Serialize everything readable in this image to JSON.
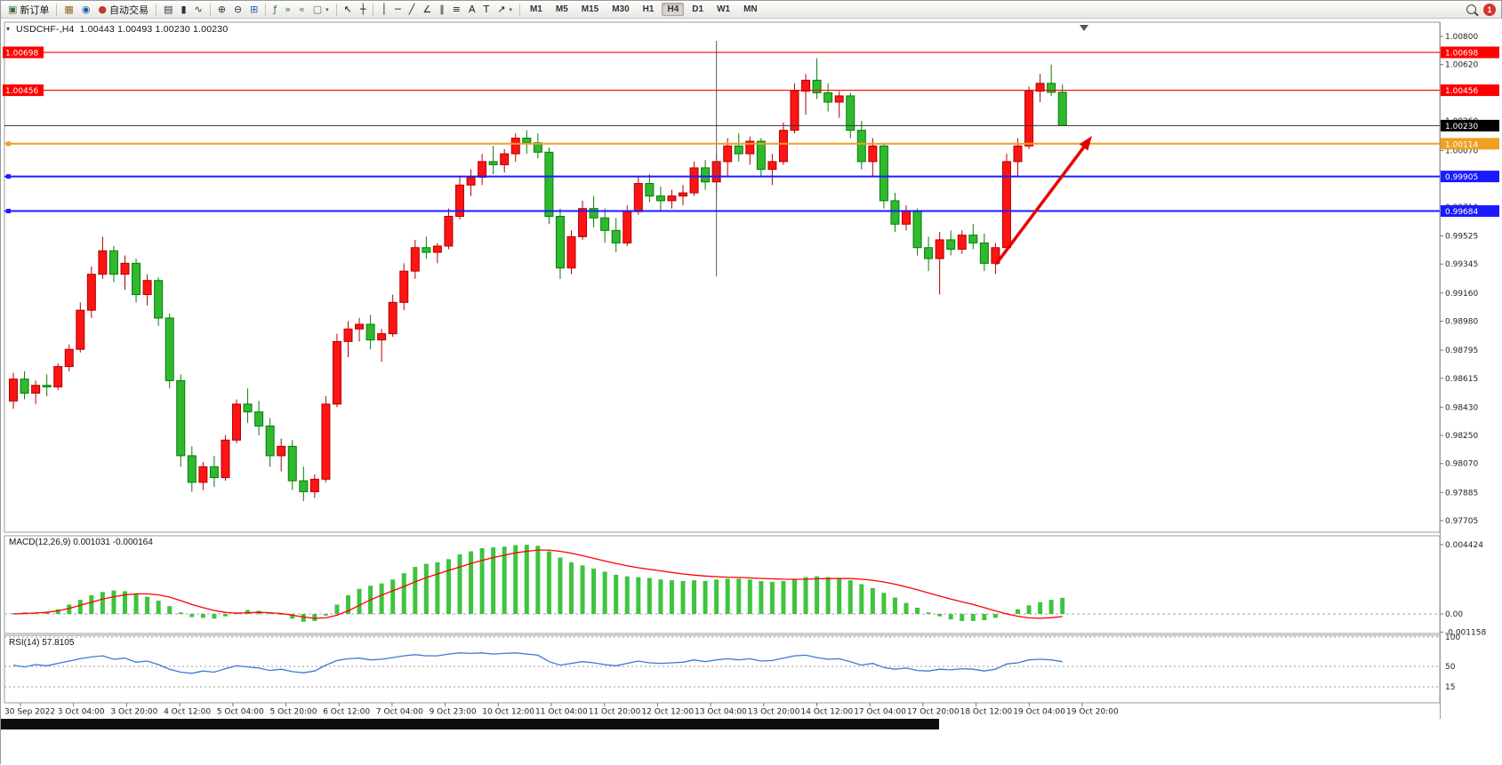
{
  "toolbar": {
    "notification_count": "1",
    "items": [
      {
        "type": "button",
        "name": "new-order-button",
        "glyph": "▣",
        "color": "#3f6f3f",
        "label": "新订单"
      },
      {
        "type": "sep"
      },
      {
        "type": "icon",
        "name": "charts-window-icon",
        "glyph": "▦",
        "color": "#8a6d1f"
      },
      {
        "type": "icon",
        "name": "navigator-icon",
        "glyph": "◉",
        "color": "#1a5fb4"
      },
      {
        "type": "button",
        "name": "autotrading-button",
        "glyph": "●",
        "color": "#c23b22",
        "label": "自动交易"
      },
      {
        "type": "sep"
      },
      {
        "type": "icon",
        "name": "bar-chart-type-icon",
        "glyph": "▤",
        "color": "#333333"
      },
      {
        "type": "icon",
        "name": "candlestick-chart-type-icon",
        "glyph": "▮",
        "color": "#333333"
      },
      {
        "type": "icon",
        "name": "line-chart-type-icon",
        "glyph": "∿",
        "color": "#333333"
      },
      {
        "type": "sep"
      },
      {
        "type": "icon",
        "name": "zoom-in-icon",
        "glyph": "⊕",
        "color": "#333333"
      },
      {
        "type": "icon",
        "name": "zoom-out-icon",
        "glyph": "⊖",
        "color": "#333333"
      },
      {
        "type": "icon",
        "name": "tile-windows-icon",
        "glyph": "⊞",
        "color": "#1a5fb4"
      },
      {
        "type": "sep"
      },
      {
        "type": "icon",
        "name": "indicators-icon",
        "glyph": "ƒ",
        "color": "#2a7d2a"
      },
      {
        "type": "icon",
        "name": "auto-scroll-icon",
        "glyph": "»",
        "color": "#2a7d2a"
      },
      {
        "type": "icon",
        "name": "chart-shift-icon",
        "glyph": "«",
        "color": "#666666"
      },
      {
        "type": "icon",
        "name": "templates-icon",
        "glyph": "▢",
        "color": "#666666",
        "caret": true
      },
      {
        "type": "sep"
      },
      {
        "type": "icon",
        "name": "cursor-icon",
        "glyph": "↖",
        "color": "#222222"
      },
      {
        "type": "icon",
        "name": "crosshair-icon",
        "glyph": "┼",
        "color": "#222222"
      },
      {
        "type": "sep"
      },
      {
        "type": "icon",
        "name": "vertical-line-icon",
        "glyph": "│",
        "color": "#222222"
      },
      {
        "type": "icon",
        "name": "horizontal-line-icon",
        "glyph": "─",
        "color": "#222222"
      },
      {
        "type": "icon",
        "name": "trendline-icon",
        "glyph": "╱",
        "color": "#222222"
      },
      {
        "type": "icon",
        "name": "angle-trendline-icon",
        "glyph": "∠",
        "color": "#222222"
      },
      {
        "type": "icon",
        "name": "equidistant-channel-icon",
        "glyph": "∥",
        "color": "#222222"
      },
      {
        "type": "icon",
        "name": "fibonacci-icon",
        "glyph": "≡",
        "color": "#222222"
      },
      {
        "type": "icon",
        "name": "text-icon",
        "glyph": "A",
        "color": "#222222"
      },
      {
        "type": "icon",
        "name": "text-label-icon",
        "glyph": "T",
        "color": "#222222"
      },
      {
        "type": "icon",
        "name": "arrows-icon",
        "glyph": "↗",
        "color": "#222222",
        "caret": true
      },
      {
        "type": "sep"
      },
      {
        "type": "tf",
        "label": "M1"
      },
      {
        "type": "tf",
        "label": "M5"
      },
      {
        "type": "tf",
        "label": "M15"
      },
      {
        "type": "tf",
        "label": "M30"
      },
      {
        "type": "tf",
        "label": "H1"
      },
      {
        "type": "tf",
        "label": "H4",
        "active": true
      },
      {
        "type": "tf",
        "label": "D1"
      },
      {
        "type": "tf",
        "label": "W1"
      },
      {
        "type": "tf",
        "label": "MN"
      }
    ]
  },
  "chart": {
    "symbol_title": "USDCHF-,H4",
    "ohlc_text": "1.00443 1.00493 1.00230 1.00230",
    "macd_label": "MACD(12,26,9) 0.001031 -0.000164",
    "rsi_label": "RSI(14) 57.8105"
  },
  "chart_data": {
    "type": "candlestick",
    "symbol": "USDCHF-",
    "timeframe": "H4",
    "ohlc_display": {
      "open": 1.00443,
      "high": 1.00493,
      "low": 1.0023,
      "close": 1.0023
    },
    "style": {
      "bull_color": "#fe1414",
      "bear_color": "#2fb92f",
      "bull_border": "#b40000",
      "bear_border": "#067d06"
    },
    "price_axis": {
      "top": 1.008,
      "bottom": 0.97705,
      "ticks": [
        1.008,
        1.0062,
        1.0044,
        1.0026,
        1.0007,
        0.9989,
        0.9971,
        0.99525,
        0.99345,
        0.9916,
        0.9898,
        0.98795,
        0.98615,
        0.9843,
        0.9825,
        0.9807,
        0.97885,
        0.97705
      ]
    },
    "horizontal_lines": [
      {
        "name": "resistance-line-upper",
        "price": 1.00698,
        "color": "#ff0000",
        "width": 1.2,
        "left_badge": true
      },
      {
        "name": "resistance-line-lower",
        "price": 1.00456,
        "color": "#ff0000",
        "width": 1.2,
        "left_badge": true
      },
      {
        "name": "current-price-line",
        "price": 1.0023,
        "color": "#333333",
        "width": 1,
        "badge_bg": "#000000"
      },
      {
        "name": "gold-support-line",
        "price": 1.00114,
        "color": "#efa023",
        "width": 2,
        "marker": true
      },
      {
        "name": "blue-support-line-upper",
        "price": 0.99905,
        "color": "#1b1bff",
        "width": 2,
        "marker": true
      },
      {
        "name": "blue-support-line-lower",
        "price": 0.99684,
        "color": "#1b1bff",
        "width": 2,
        "marker": true
      }
    ],
    "vertical_line": {
      "candle_index": 63
    },
    "trend_arrow": {
      "color": "#e60000"
    },
    "time_labels": [
      "30 Sep 2022",
      "3 Oct 04:00",
      "3 Oct 20:00",
      "4 Oct 12:00",
      "5 Oct 04:00",
      "5 Oct 20:00",
      "6 Oct 12:00",
      "7 Oct 04:00",
      "9 Oct 23:00",
      "10 Oct 12:00",
      "11 Oct 04:00",
      "11 Oct 20:00",
      "12 Oct 12:00",
      "13 Oct 04:00",
      "13 Oct 20:00",
      "14 Oct 12:00",
      "17 Oct 04:00",
      "17 Oct 20:00",
      "18 Oct 12:00",
      "19 Oct 04:00",
      "19 Oct 20:00"
    ],
    "candles": [
      [
        0.9847,
        0.9865,
        0.9842,
        0.9861
      ],
      [
        0.9861,
        0.9866,
        0.9848,
        0.9852
      ],
      [
        0.9852,
        0.986,
        0.9845,
        0.9857
      ],
      [
        0.9857,
        0.9864,
        0.985,
        0.9856
      ],
      [
        0.9856,
        0.9871,
        0.9854,
        0.9869
      ],
      [
        0.9869,
        0.9883,
        0.9866,
        0.988
      ],
      [
        0.988,
        0.991,
        0.9878,
        0.9905
      ],
      [
        0.9905,
        0.9933,
        0.99,
        0.9928
      ],
      [
        0.9928,
        0.9952,
        0.9925,
        0.9943
      ],
      [
        0.9943,
        0.9946,
        0.9923,
        0.9928
      ],
      [
        0.9928,
        0.994,
        0.9918,
        0.9935
      ],
      [
        0.9935,
        0.9938,
        0.991,
        0.9915
      ],
      [
        0.9915,
        0.9928,
        0.9908,
        0.9924
      ],
      [
        0.9924,
        0.9926,
        0.9895,
        0.99
      ],
      [
        0.99,
        0.9903,
        0.9855,
        0.986
      ],
      [
        0.986,
        0.9864,
        0.9805,
        0.9812
      ],
      [
        0.9812,
        0.9818,
        0.9789,
        0.9795
      ],
      [
        0.9795,
        0.9808,
        0.979,
        0.9805
      ],
      [
        0.9805,
        0.9812,
        0.9792,
        0.9798
      ],
      [
        0.9798,
        0.9825,
        0.9796,
        0.9822
      ],
      [
        0.9822,
        0.9848,
        0.982,
        0.9845
      ],
      [
        0.9845,
        0.9855,
        0.9833,
        0.984
      ],
      [
        0.984,
        0.9847,
        0.9825,
        0.9831
      ],
      [
        0.9831,
        0.9836,
        0.9805,
        0.9812
      ],
      [
        0.9812,
        0.9823,
        0.9802,
        0.9818
      ],
      [
        0.9818,
        0.9822,
        0.979,
        0.9796
      ],
      [
        0.9796,
        0.9805,
        0.9783,
        0.9789
      ],
      [
        0.9789,
        0.98,
        0.9785,
        0.9797
      ],
      [
        0.9797,
        0.985,
        0.9795,
        0.9845
      ],
      [
        0.9845,
        0.989,
        0.9843,
        0.9885
      ],
      [
        0.9885,
        0.9898,
        0.9875,
        0.9893
      ],
      [
        0.9893,
        0.99,
        0.9885,
        0.9896
      ],
      [
        0.9896,
        0.9902,
        0.988,
        0.9886
      ],
      [
        0.9886,
        0.9893,
        0.9872,
        0.989
      ],
      [
        0.989,
        0.9915,
        0.9888,
        0.991
      ],
      [
        0.991,
        0.9935,
        0.9905,
        0.993
      ],
      [
        0.993,
        0.995,
        0.9925,
        0.9945
      ],
      [
        0.9945,
        0.9952,
        0.9938,
        0.9942
      ],
      [
        0.9942,
        0.9948,
        0.9935,
        0.9946
      ],
      [
        0.9946,
        0.997,
        0.9944,
        0.9965
      ],
      [
        0.9965,
        0.999,
        0.9963,
        0.9985
      ],
      [
        0.9985,
        0.9995,
        0.9978,
        0.999
      ],
      [
        0.999,
        1.0005,
        0.9985,
        1.0
      ],
      [
        1.0,
        1.001,
        0.9992,
        0.9998
      ],
      [
        0.9998,
        1.0008,
        0.9993,
        1.0005
      ],
      [
        1.0005,
        1.0018,
        1.0,
        1.0015
      ],
      [
        1.0015,
        1.002,
        1.0005,
        1.0012
      ],
      [
        1.0012,
        1.0018,
        1.0002,
        1.0006
      ],
      [
        1.0006,
        1.0009,
        0.996,
        0.9965
      ],
      [
        0.9965,
        0.997,
        0.9925,
        0.9932
      ],
      [
        0.9932,
        0.9956,
        0.9928,
        0.9952
      ],
      [
        0.9952,
        0.9975,
        0.995,
        0.997
      ],
      [
        0.997,
        0.9978,
        0.9958,
        0.9964
      ],
      [
        0.9964,
        0.997,
        0.9948,
        0.9956
      ],
      [
        0.9956,
        0.9964,
        0.9942,
        0.9948
      ],
      [
        0.9948,
        0.9972,
        0.9946,
        0.9968
      ],
      [
        0.9968,
        0.999,
        0.9966,
        0.9986
      ],
      [
        0.9986,
        0.9992,
        0.9974,
        0.9978
      ],
      [
        0.9978,
        0.9984,
        0.9968,
        0.9975
      ],
      [
        0.9975,
        0.9982,
        0.997,
        0.9978
      ],
      [
        0.9978,
        0.9985,
        0.9972,
        0.998
      ],
      [
        0.998,
        1.0,
        0.9978,
        0.9996
      ],
      [
        0.9996,
        1.0001,
        0.9982,
        0.9987
      ],
      [
        0.9987,
        1.0005,
        0.998,
        1.0
      ],
      [
        1.0,
        1.0015,
        0.999,
        1.001
      ],
      [
        1.001,
        1.0018,
        1.0,
        1.0005
      ],
      [
        1.0005,
        1.0016,
        0.9998,
        1.0013
      ],
      [
        1.0013,
        1.0015,
        0.999,
        0.9995
      ],
      [
        0.9995,
        1.0005,
        0.9985,
        1.0
      ],
      [
        1.0,
        1.0025,
        0.9998,
        1.002
      ],
      [
        1.002,
        1.005,
        1.0018,
        1.0045
      ],
      [
        1.0045,
        1.0056,
        1.003,
        1.0052
      ],
      [
        1.0052,
        1.0066,
        1.004,
        1.0044
      ],
      [
        1.0044,
        1.005,
        1.0032,
        1.0038
      ],
      [
        1.0038,
        1.0045,
        1.0028,
        1.0042
      ],
      [
        1.0042,
        1.0044,
        1.0015,
        1.002
      ],
      [
        1.002,
        1.0026,
        0.9995,
        1.0
      ],
      [
        1.0,
        1.0015,
        0.999,
        1.001
      ],
      [
        1.001,
        1.0012,
        0.997,
        0.9975
      ],
      [
        0.9975,
        0.998,
        0.9955,
        0.996
      ],
      [
        0.996,
        0.9972,
        0.9956,
        0.9968
      ],
      [
        0.9968,
        0.997,
        0.994,
        0.9945
      ],
      [
        0.9945,
        0.9952,
        0.993,
        0.9938
      ],
      [
        0.9938,
        0.9955,
        0.9915,
        0.995
      ],
      [
        0.995,
        0.9956,
        0.994,
        0.9944
      ],
      [
        0.9944,
        0.9956,
        0.9941,
        0.9953
      ],
      [
        0.9953,
        0.996,
        0.9944,
        0.9948
      ],
      [
        0.9948,
        0.9954,
        0.993,
        0.9935
      ],
      [
        0.9935,
        0.9948,
        0.9928,
        0.9945
      ],
      [
        0.9945,
        1.0005,
        0.9943,
        1.0
      ],
      [
        1.0,
        1.0015,
        0.999,
        1.001
      ],
      [
        1.001,
        1.0048,
        1.0008,
        1.0045
      ],
      [
        1.0045,
        1.0056,
        1.0038,
        1.005
      ],
      [
        1.005,
        1.0062,
        1.0042,
        1.00443
      ],
      [
        1.00443,
        1.00493,
        1.0023,
        1.0023
      ]
    ],
    "macd": {
      "title": "MACD(12,26,9)",
      "main_value": 0.001031,
      "signal_value": -0.000164,
      "hist_color": "#3ec43e",
      "signal_color": "#ff0000",
      "axis_labels": [
        {
          "text": "0.004424",
          "value": 0.004424
        },
        {
          "text": "0.00",
          "value": 0
        },
        {
          "text": "-0.001158",
          "value": -0.001158
        }
      ],
      "histogram": [
        5e-05,
        0.0001,
        8e-05,
        0.00015,
        0.0003,
        0.0006,
        0.0009,
        0.0012,
        0.0014,
        0.0015,
        0.00145,
        0.0013,
        0.0011,
        0.00085,
        0.0005,
        0.0001,
        -0.0002,
        -0.00025,
        -0.0003,
        -0.00015,
        0.0001,
        0.00025,
        0.0002,
        5e-05,
        -5e-05,
        -0.0003,
        -0.0005,
        -0.00045,
        -0.0001,
        0.0006,
        0.0012,
        0.0016,
        0.0018,
        0.00195,
        0.0022,
        0.0026,
        0.003,
        0.0032,
        0.0033,
        0.0035,
        0.0038,
        0.004,
        0.0042,
        0.00425,
        0.0043,
        0.0044,
        0.00442,
        0.00435,
        0.004,
        0.0036,
        0.0033,
        0.0031,
        0.0029,
        0.0027,
        0.0025,
        0.0024,
        0.00235,
        0.0023,
        0.0022,
        0.00215,
        0.0021,
        0.00215,
        0.0021,
        0.0022,
        0.00225,
        0.00225,
        0.0022,
        0.0021,
        0.00205,
        0.0021,
        0.0022,
        0.00235,
        0.0024,
        0.00235,
        0.0023,
        0.00215,
        0.0019,
        0.00165,
        0.00135,
        0.00105,
        0.0007,
        0.0004,
        0.0001,
        -0.00015,
        -0.00035,
        -0.00045,
        -0.00045,
        -0.0004,
        -0.00025,
        5e-05,
        0.0003,
        0.00055,
        0.00075,
        0.0009,
        0.00103
      ],
      "signal": [
        0.0,
        3e-05,
        6e-05,
        0.0001,
        0.0002,
        0.00035,
        0.00055,
        0.00075,
        0.00095,
        0.0011,
        0.00122,
        0.00128,
        0.00128,
        0.00122,
        0.00108,
        0.00085,
        0.0006,
        0.0004,
        0.00022,
        0.0001,
        5e-05,
        8e-05,
        0.0001,
        8e-05,
        3e-05,
        -8e-05,
        -0.0002,
        -0.00028,
        -0.00025,
        -8e-05,
        0.0002,
        0.00055,
        0.0009,
        0.0012,
        0.00148,
        0.00175,
        0.00205,
        0.00232,
        0.00255,
        0.00278,
        0.003,
        0.00322,
        0.00342,
        0.0036,
        0.00375,
        0.0039,
        0.004,
        0.00408,
        0.00408,
        0.004,
        0.00388,
        0.00372,
        0.00355,
        0.00338,
        0.00322,
        0.00308,
        0.00295,
        0.00285,
        0.00275,
        0.00265,
        0.00255,
        0.00248,
        0.00242,
        0.00238,
        0.00235,
        0.00233,
        0.0023,
        0.00227,
        0.00224,
        0.00222,
        0.00221,
        0.00222,
        0.00224,
        0.00226,
        0.00227,
        0.00226,
        0.00222,
        0.00215,
        0.00204,
        0.0019,
        0.00173,
        0.00154,
        0.00134,
        0.00114,
        0.00095,
        0.00077,
        0.0006,
        0.0004,
        0.0002,
        0.0,
        -0.00015,
        -0.00025,
        -0.00028,
        -0.00024,
        -0.000164
      ]
    },
    "rsi": {
      "title": "RSI(14)",
      "value": 57.8105,
      "color": "#3a7bd5",
      "levels": [
        {
          "text": "100",
          "value": 100
        },
        {
          "text": "50",
          "value": 50
        },
        {
          "text": "15",
          "value": 15
        }
      ],
      "series": [
        52,
        49,
        53,
        51,
        55,
        59,
        63,
        66,
        68,
        62,
        64,
        57,
        59,
        53,
        45,
        40,
        38,
        42,
        40,
        46,
        51,
        49,
        47,
        43,
        45,
        41,
        39,
        42,
        52,
        60,
        63,
        64,
        61,
        62,
        65,
        68,
        70,
        68,
        68,
        71,
        73,
        72,
        73,
        71,
        72,
        73,
        71,
        69,
        58,
        52,
        55,
        58,
        56,
        53,
        51,
        55,
        59,
        56,
        55,
        56,
        57,
        61,
        58,
        61,
        63,
        61,
        63,
        59,
        60,
        64,
        68,
        69,
        65,
        62,
        63,
        58,
        52,
        55,
        48,
        45,
        47,
        43,
        42,
        45,
        44,
        46,
        45,
        42,
        45,
        54,
        56,
        61,
        62,
        61,
        57.8
      ]
    }
  }
}
